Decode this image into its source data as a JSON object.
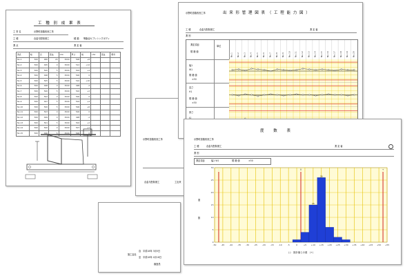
{
  "sheet_left": {
    "title": "工 種 別 成 果 表",
    "project_label": "工 事 名",
    "project_value": "示野町道路改良工事",
    "work_label": "工 種",
    "work_value": "合金与配制港工",
    "place_label": "測 点",
    "type_label": "種 類",
    "type_value": "等脂合セプレシングボディ",
    "recorder_label": "測 定 者",
    "table_header": [
      "測点",
      "幅",
      "高",
      "延長",
      "L50",
      "厚さ",
      "幅",
      "L50",
      "延長",
      "備考"
    ],
    "rows": [
      [
        "No.1",
        "500",
        "480",
        "20",
        "3000",
        "508",
        "+8"
      ],
      [
        "No.2",
        "500",
        "495",
        "0",
        "3000",
        "512",
        "+12"
      ],
      [
        "No.3",
        "500",
        "500",
        "5",
        "3000",
        "504",
        "+4"
      ],
      [
        "No.4",
        "500",
        "498",
        "5",
        "3000",
        "500",
        "0"
      ],
      [
        "No.5",
        "500",
        "505",
        "5",
        "3000",
        "510",
        "+10"
      ],
      [
        "No.6",
        "500",
        "498",
        "0",
        "3000",
        "498",
        "-2"
      ],
      [
        "No.7",
        "500",
        "500",
        "5",
        "3000",
        "502",
        "+2"
      ],
      [
        "No.8",
        "500",
        "502",
        "0",
        "3000",
        "500",
        "0"
      ],
      [
        "No.9",
        "500",
        "497",
        "5",
        "3000",
        "504",
        "+4"
      ],
      [
        "No.10",
        "500",
        "500",
        "5",
        "3000",
        "506",
        "+6"
      ],
      [
        "No.11",
        "500",
        "503",
        "0",
        "3000",
        "500",
        "0"
      ],
      [
        "No.12",
        "500",
        "499",
        "0",
        "3000",
        "498",
        "-2"
      ],
      [
        "No.13",
        "500",
        "501",
        "5",
        "3000",
        "502",
        "+2"
      ],
      [
        "No.14",
        "500",
        "500",
        "0",
        "3000",
        "507",
        "+7"
      ],
      [
        "No.15",
        "500",
        "496",
        "5",
        "3000",
        "500",
        "0"
      ]
    ]
  },
  "sheet_bottom": {
    "project": "示野町道路改良工事",
    "work": "合金与配制港工",
    "work_tail": "工出来",
    "date1_label": "自",
    "date1": "平成18年 3月5日",
    "date2_label": "至",
    "date2": "平成18年 4月18日",
    "company_label": "施工会社",
    "stamp_label": "審査員"
  },
  "sheet_control": {
    "title": "出 来 形 管 理 図 表 （ 工 程 能 力 図 ）",
    "project": "示野町道路改良工事",
    "work_label": "工 種",
    "work_value": "合金与配制港工",
    "recorder_label": "測 定 者",
    "place_label": "測 別",
    "header_left": "測定項目",
    "header_sub": "規 格 値",
    "header_unit": "単位",
    "columns": [
      "No.1",
      "No.2",
      "No.3",
      "No.4",
      "No.5",
      "No.6",
      "No.7",
      "No.8",
      "No.9",
      "No.10",
      "No.11",
      "No.12",
      "No.13",
      "No.14",
      "No.15",
      "No.16",
      "No.17",
      "No.18",
      "No.19",
      "No.20"
    ],
    "rows": [
      {
        "label": "幅1",
        "sub": "W1",
        "spec": "規 格 値",
        "spec_val": "±50"
      },
      {
        "label": "高さ",
        "sub": "H1",
        "spec": "規 格 値",
        "spec_val": "±50"
      },
      {
        "label": "厚さ",
        "sub": "t1",
        "spec": "規 格 値",
        "spec_val": "±30"
      }
    ],
    "series_values": [
      [
        2,
        3,
        1,
        4,
        3,
        2,
        0,
        3,
        2,
        1,
        2,
        4,
        3,
        2,
        3,
        2,
        1,
        3,
        2,
        2
      ],
      [
        0,
        -1,
        1,
        0,
        -2,
        0,
        1,
        0,
        -1,
        0,
        1,
        0,
        0,
        -1,
        0,
        1,
        0,
        0,
        -1,
        0
      ],
      [
        1,
        0,
        5,
        0,
        1,
        0,
        2,
        1,
        0,
        1,
        0,
        0,
        1,
        0,
        0,
        1,
        0,
        0,
        1,
        0
      ]
    ]
  },
  "sheet_histogram": {
    "title": "度 数 表",
    "project": "示野町道路改良工事",
    "work_label": "工 種",
    "work_value": "合金与配制港工",
    "recorder_label": "測 定 者",
    "place_label": "測 別",
    "item_label": "測定項目",
    "item_value": "幅1 W1",
    "spec_label": "規 格 値",
    "spec_value": "±50",
    "y_label_top": "度",
    "y_label_bottom": "数",
    "x_label": "(-)　設計値との差　(+)",
    "x_ticks": [
      "-50",
      "-45",
      "-40",
      "-35",
      "-30",
      "-25",
      "-20",
      "-15",
      "-10",
      "-5",
      "0",
      "+5",
      "+10",
      "+15",
      "+20",
      "+25",
      "+30",
      "+35",
      "+40",
      "+45",
      "+50",
      "+55"
    ],
    "marker_left_label": "-",
    "marker_mid_label": "0",
    "marker_right_label": "+"
  },
  "chart_data": {
    "type": "bar",
    "categories": [
      "-50",
      "-45",
      "-40",
      "-35",
      "-30",
      "-25",
      "-20",
      "-15",
      "-10",
      "-5",
      "0",
      "+5",
      "+10",
      "+15",
      "+20",
      "+25",
      "+30",
      "+35",
      "+40",
      "+45",
      "+50"
    ],
    "values": [
      0,
      0,
      0,
      0,
      0,
      0,
      0,
      0,
      0,
      1,
      4,
      15,
      26,
      6,
      2,
      1,
      0,
      0,
      0,
      0,
      0
    ],
    "data_labels": [
      "",
      "",
      "",
      "",
      "",
      "",
      "",
      "",
      "",
      "",
      "",
      "15",
      "26",
      "",
      "",
      "",
      "",
      "",
      "",
      "",
      ""
    ],
    "xlabel": "(-)　設計値との差　(+)",
    "ylabel": "度数",
    "ylim": [
      0,
      30
    ],
    "y_ticks": [
      0,
      5,
      10,
      15,
      20,
      25,
      30
    ],
    "grid": true,
    "colors": {
      "bar": "#1f3fd6",
      "limit": "#d22222",
      "background": "#fffbd6",
      "grid": "#e6c200"
    }
  }
}
